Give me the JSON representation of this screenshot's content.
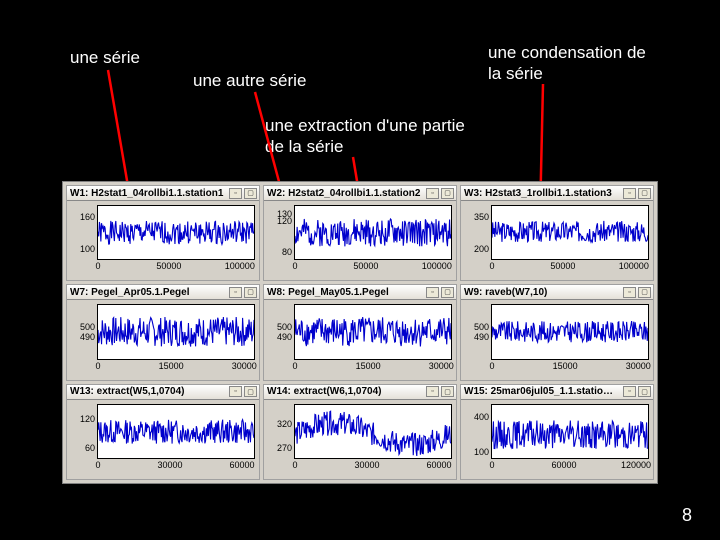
{
  "page": "8",
  "labels": {
    "serie": "une série",
    "autre": "une autre série",
    "cond": "une condensation de la série",
    "extr": "une extraction d'une partie de la série"
  },
  "colors": {
    "slide_bg": "#000000",
    "text": "#ffffff",
    "arrow": "#ff0000",
    "window_bg": "#d4d0c8",
    "plot_bg": "#ffffff",
    "series": "#0000cc",
    "axis": "#000000"
  },
  "panels": [
    {
      "title": "W1: H2stat1_04rollbi1.1.station1",
      "yticks": [
        160,
        100
      ],
      "ylim": [
        80,
        180
      ],
      "xticks": [
        0,
        50000,
        100000
      ],
      "xlim": [
        0,
        110000
      ],
      "series": {
        "n": 220,
        "base": 130,
        "amp": 22,
        "seed": 1
      }
    },
    {
      "title": "W2: H2stat2_04rollbi1.1.station2",
      "yticks": [
        130,
        120,
        80
      ],
      "ylim": [
        70,
        140
      ],
      "xticks": [
        0,
        50000,
        100000
      ],
      "xlim": [
        0,
        110000
      ],
      "series": {
        "n": 220,
        "base": 105,
        "amp": 18,
        "seed": 2
      }
    },
    {
      "title": "W3: H2stat3_1rollbi1.1.station3",
      "yticks": [
        350,
        200
      ],
      "ylim": [
        150,
        400
      ],
      "xticks": [
        0,
        50000,
        100000
      ],
      "xlim": [
        0,
        110000
      ],
      "series": {
        "n": 220,
        "base": 280,
        "amp": 50,
        "seed": 3
      }
    },
    {
      "title": "W7: Pegel_Apr05.1.Pegel",
      "yticks": [
        500,
        490
      ],
      "ylim": [
        470,
        520
      ],
      "xticks": [
        0,
        15000,
        30000
      ],
      "xlim": [
        0,
        32000
      ],
      "series": {
        "n": 220,
        "base": 495,
        "amp": 14,
        "seed": 7
      }
    },
    {
      "title": "W8: Pegel_May05.1.Pegel",
      "yticks": [
        500,
        490
      ],
      "ylim": [
        470,
        520
      ],
      "xticks": [
        0,
        15000,
        30000
      ],
      "xlim": [
        0,
        32000
      ],
      "series": {
        "n": 220,
        "base": 495,
        "amp": 14,
        "seed": 8
      }
    },
    {
      "title": "W9: raveb(W7,10)",
      "yticks": [
        500,
        490
      ],
      "ylim": [
        470,
        520
      ],
      "xticks": [
        0,
        15000,
        30000
      ],
      "xlim": [
        0,
        32000
      ],
      "series": {
        "n": 220,
        "base": 495,
        "amp": 10,
        "seed": 9
      }
    },
    {
      "title": "W13: extract(W5,1,0704)",
      "yticks": [
        120,
        60
      ],
      "ylim": [
        40,
        150
      ],
      "xticks": [
        0,
        30000,
        60000
      ],
      "xlim": [
        0,
        65000
      ],
      "series": {
        "n": 220,
        "base": 95,
        "amp": 25,
        "seed": 13
      }
    },
    {
      "title": "W14: extract(W6,1,0704)",
      "yticks": [
        320,
        270
      ],
      "ylim": [
        250,
        360
      ],
      "xticks": [
        0,
        30000,
        60000
      ],
      "xlim": [
        0,
        65000
      ],
      "series": {
        "n": 220,
        "base": 300,
        "amp": 25,
        "seed": 14,
        "trend": true
      }
    },
    {
      "title": "W15: 25mar06jul05_1.1.statio…",
      "yticks": [
        400,
        100
      ],
      "ylim": [
        50,
        500
      ],
      "xticks": [
        0,
        60000,
        120000
      ],
      "xlim": [
        0,
        130000
      ],
      "series": {
        "n": 220,
        "base": 250,
        "amp": 120,
        "seed": 15
      }
    }
  ]
}
